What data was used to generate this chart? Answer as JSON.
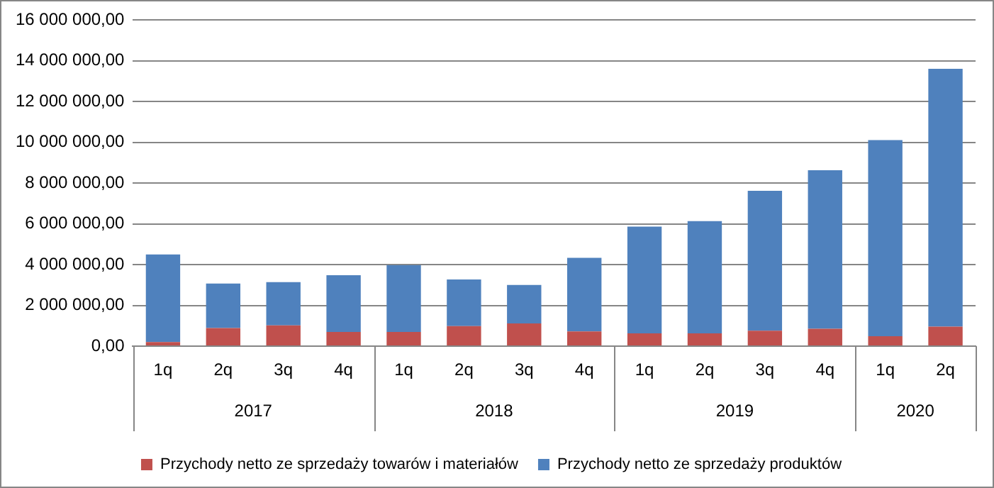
{
  "chart_data": {
    "type": "bar",
    "stacked": true,
    "categories": [
      "1q",
      "2q",
      "3q",
      "4q",
      "1q",
      "2q",
      "3q",
      "4q",
      "1q",
      "2q",
      "3q",
      "4q",
      "1q",
      "2q"
    ],
    "series": [
      {
        "name": "Przychody netto ze sprzedaży towarów i materiałów",
        "color": "#c0504d",
        "values": [
          200000,
          890000,
          1020000,
          700000,
          700000,
          980000,
          1110000,
          720000,
          630000,
          630000,
          760000,
          850000,
          490000,
          960000
        ]
      },
      {
        "name": "Przychody netto ze sprzedaży produktów",
        "color": "#4f81bd",
        "values": [
          4300000,
          2180000,
          2120000,
          2780000,
          3280000,
          2290000,
          1890000,
          3610000,
          5240000,
          5510000,
          6860000,
          7780000,
          9620000,
          12650000
        ]
      }
    ],
    "annotations": [
      "2017",
      "2018",
      "2019",
      "2020"
    ],
    "ylim": [
      0,
      16000000
    ],
    "yticks": [
      {
        "value": 0,
        "label": "0,00"
      },
      {
        "value": 2000000,
        "label": "2 000 000,00"
      },
      {
        "value": 4000000,
        "label": "4 000 000,00"
      },
      {
        "value": 6000000,
        "label": "6 000 000,00"
      },
      {
        "value": 8000000,
        "label": "8 000 000,00"
      },
      {
        "value": 10000000,
        "label": "10 000 000,00"
      },
      {
        "value": 12000000,
        "label": "12 000 000,00"
      },
      {
        "value": 14000000,
        "label": "14 000 000,00"
      },
      {
        "value": 16000000,
        "label": "16 000 000,00"
      }
    ],
    "grid": "y",
    "legend": "bottom"
  }
}
